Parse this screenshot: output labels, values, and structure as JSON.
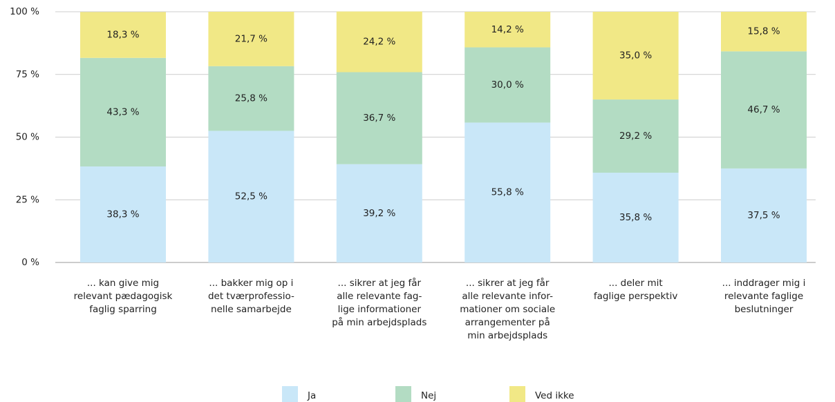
{
  "chart_data": {
    "type": "stacked_bar",
    "categories": [
      "... kan give mig\nrelevant pædagogisk\nfaglig sparring",
      "... bakker mig op i\ndet tværprofessio-\nnelle samarbejde",
      "... sikrer at jeg får\nalle relevante fag-\nlige informationer\npå min arbejdsplads",
      "... sikrer at jeg får\nalle relevante infor-\nmationer om sociale\narrangementer på\nmin arbejdsplads",
      "... deler mit\nfaglige perspektiv",
      "... inddrager mig i\nrelevante faglige\nbeslutninger"
    ],
    "series": [
      {
        "name": "Ja",
        "color": "#c9e7f8",
        "values": [
          38.3,
          52.5,
          39.2,
          55.8,
          35.8,
          37.5
        ],
        "value_labels": [
          "38,3 %",
          "52,5 %",
          "39,2 %",
          "55,8 %",
          "35,8 %",
          "37,5 %"
        ]
      },
      {
        "name": "Nej",
        "color": "#b3dcc3",
        "values": [
          43.3,
          25.8,
          36.7,
          30.0,
          29.2,
          46.7
        ],
        "value_labels": [
          "43,3 %",
          "25,8 %",
          "36,7 %",
          "30,0 %",
          "29,2 %",
          "46,7 %"
        ]
      },
      {
        "name": "Ved ikke",
        "color": "#f1e886",
        "values": [
          18.3,
          21.7,
          24.2,
          14.2,
          35.0,
          15.8
        ],
        "value_labels": [
          "18,3 %",
          "21,7 %",
          "24,2 %",
          "14,2 %",
          "35,0 %",
          "15,8 %"
        ]
      }
    ],
    "ylim": [
      0,
      100
    ],
    "yticks": [
      {
        "value": 0,
        "label": "0 %"
      },
      {
        "value": 25,
        "label": "25 %"
      },
      {
        "value": 50,
        "label": "50 %"
      },
      {
        "value": 75,
        "label": "75 %"
      },
      {
        "value": 100,
        "label": "100 %"
      }
    ],
    "grid": true,
    "legend": "bottom"
  }
}
